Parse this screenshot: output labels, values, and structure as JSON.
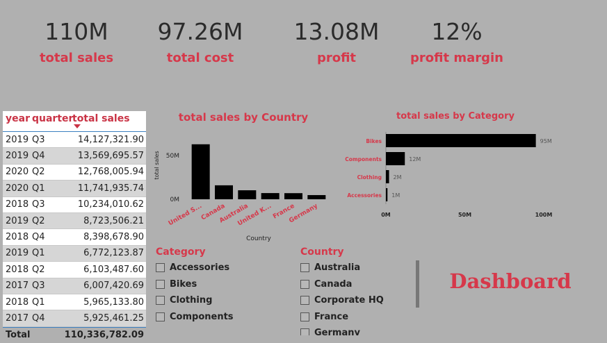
{
  "cards": [
    {
      "value": "110M",
      "label": "total sales"
    },
    {
      "value": "97.26M",
      "label": "total cost"
    },
    {
      "value": "13.08M",
      "label": "profit"
    },
    {
      "value": "12%",
      "label": "profit margin"
    }
  ],
  "table": {
    "columns": [
      "year",
      "quarter",
      "total sales"
    ],
    "rows": [
      [
        "2019",
        "Q3",
        "14,127,321.90"
      ],
      [
        "2019",
        "Q4",
        "13,569,695.57"
      ],
      [
        "2020",
        "Q2",
        "12,768,005.94"
      ],
      [
        "2020",
        "Q1",
        "11,741,935.74"
      ],
      [
        "2018",
        "Q3",
        "10,234,010.62"
      ],
      [
        "2019",
        "Q2",
        "8,723,506.21"
      ],
      [
        "2018",
        "Q4",
        "8,398,678.90"
      ],
      [
        "2019",
        "Q1",
        "6,772,123.87"
      ],
      [
        "2018",
        "Q2",
        "6,103,487.60"
      ],
      [
        "2017",
        "Q3",
        "6,007,420.69"
      ],
      [
        "2018",
        "Q1",
        "5,965,133.80"
      ],
      [
        "2017",
        "Q4",
        "5,925,461.25"
      ]
    ],
    "total": [
      "Total",
      "110,336,782.09"
    ]
  },
  "chart_data": [
    {
      "type": "bar",
      "title": "total sales by Country",
      "categories": [
        "United S...",
        "Canada",
        "Australia",
        "United K...",
        "France",
        "Germany"
      ],
      "values": [
        63,
        16,
        10.3,
        7.1,
        7,
        4.8
      ],
      "color": "#000000",
      "ylim": [
        0,
        70
      ],
      "yticks": [
        {
          "value": 0,
          "label": "0M"
        },
        {
          "value": 50,
          "label": "50M"
        }
      ],
      "x_label": "Country",
      "y_label": "total sales"
    },
    {
      "type": "barh",
      "title": "total sales by Category",
      "categories": [
        "Bikes",
        "Components",
        "Clothing",
        "Accessories"
      ],
      "values": [
        95,
        12,
        2,
        1
      ],
      "value_labels": [
        "95M",
        "12M",
        "2M",
        "1M"
      ],
      "color": "#000000",
      "xlim": [
        0,
        100
      ],
      "xticks": [
        {
          "value": 0,
          "label": "0M"
        },
        {
          "value": 50,
          "label": "50M"
        },
        {
          "value": 100,
          "label": "100M"
        }
      ]
    }
  ],
  "slicers": [
    {
      "title": "Category",
      "items": [
        "Accessories",
        "Bikes",
        "Clothing",
        "Components"
      ]
    },
    {
      "title": "Country",
      "items": [
        "Australia",
        "Canada",
        "Corporate HQ",
        "France",
        "Germany"
      ]
    }
  ],
  "title": "Dashboard"
}
